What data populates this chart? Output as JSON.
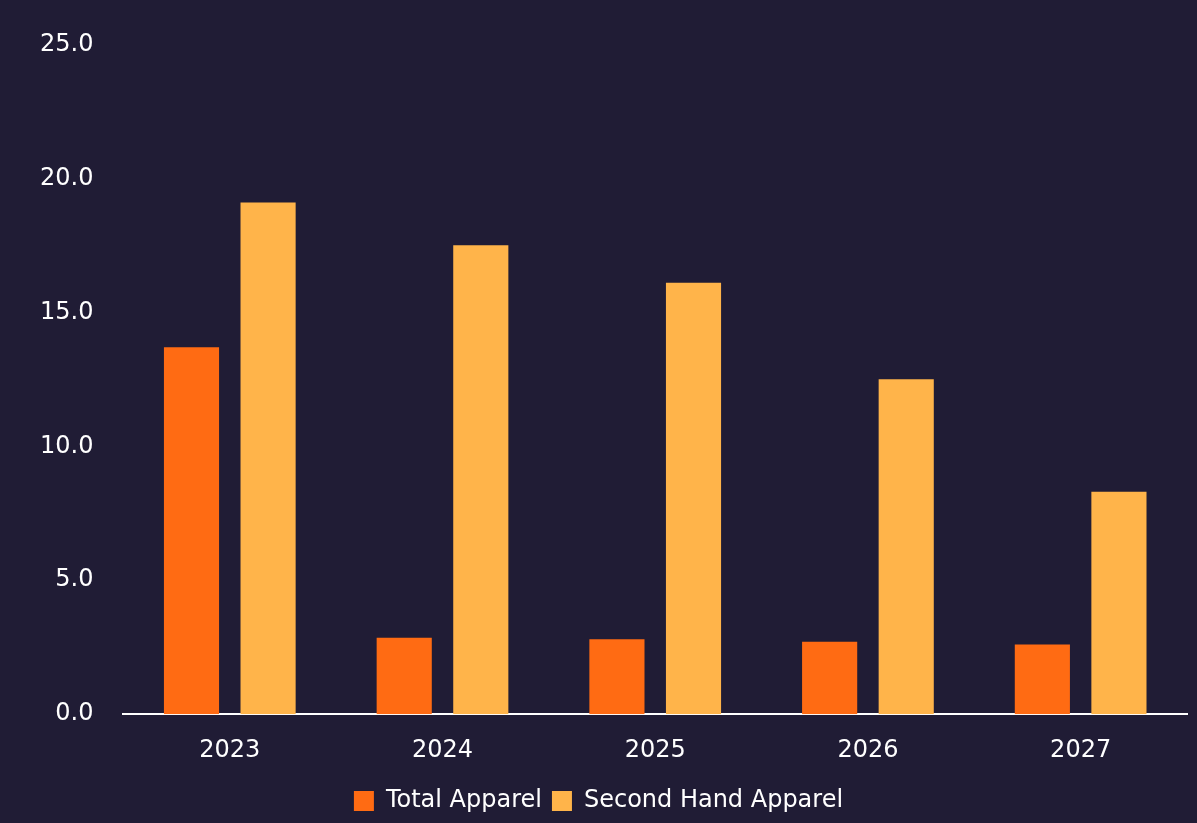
{
  "chart_data": {
    "type": "bar",
    "categories": [
      "2023",
      "2024",
      "2025",
      "2026",
      "2027"
    ],
    "series": [
      {
        "name": "Total Apparel",
        "color": "#ff6b13",
        "values": [
          13.7,
          2.85,
          2.8,
          2.7,
          2.6
        ]
      },
      {
        "name": "Second Hand Apparel",
        "color": "#ffb44a",
        "values": [
          19.1,
          17.5,
          16.1,
          12.5,
          8.3
        ]
      }
    ],
    "ylim": [
      0,
      25
    ],
    "yticks": [
      {
        "value": 0,
        "label": "0.0"
      },
      {
        "value": 5,
        "label": "5.0"
      },
      {
        "value": 10,
        "label": "10.0"
      },
      {
        "value": 15,
        "label": "15.0"
      },
      {
        "value": 20,
        "label": "20.0"
      },
      {
        "value": 25,
        "label": "25.0"
      }
    ],
    "grid": false,
    "legend": "bottom"
  }
}
